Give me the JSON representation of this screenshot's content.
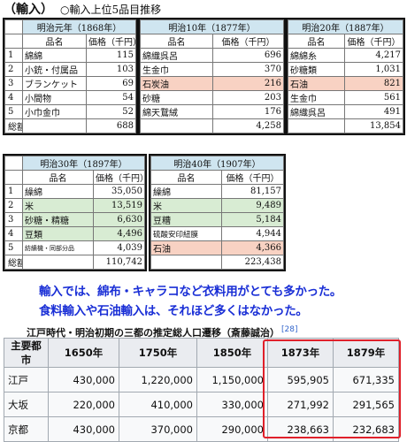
{
  "header": {
    "title": "（輸入）",
    "subtitle": "○輸入上位5品目推移"
  },
  "shared": {
    "name_col": "品名",
    "value_col": "価格（千円）",
    "total_label": "総額",
    "ranks": [
      "1",
      "2",
      "3",
      "4",
      "5"
    ]
  },
  "tables": [
    {
      "era": "明治元年（1868年）",
      "rows": [
        {
          "name": "綿綿",
          "value": "115"
        },
        {
          "name": "小銃・付属品",
          "value": "103"
        },
        {
          "name": "ブランケット",
          "value": "69"
        },
        {
          "name": "小間物",
          "value": "54"
        },
        {
          "name": "小巾金巾",
          "value": "52"
        }
      ],
      "total": "688"
    },
    {
      "era": "明治10年（1877年）",
      "rows": [
        {
          "name": "綿織呉呂",
          "value": "696"
        },
        {
          "name": "生金巾",
          "value": "370"
        },
        {
          "name": "石炭油",
          "value": "216"
        },
        {
          "name": "砂糖",
          "value": "203"
        },
        {
          "name": "綿天鵞絨",
          "value": "176"
        }
      ],
      "total": "4,258"
    },
    {
      "era": "明治20年（1887年）",
      "rows": [
        {
          "name": "綿綿糸",
          "value": "4,217"
        },
        {
          "name": "砂糖類",
          "value": "1,031"
        },
        {
          "name": "石油",
          "value": "821"
        },
        {
          "name": "生金巾",
          "value": "561"
        },
        {
          "name": "綿織呉呂",
          "value": "491"
        }
      ],
      "total": "13,854"
    },
    {
      "era": "明治30年（1897年）",
      "rows": [
        {
          "name": "繰綿",
          "value": "35,050"
        },
        {
          "name": "米",
          "value": "13,519"
        },
        {
          "name": "砂糖・精糖",
          "value": "6,630"
        },
        {
          "name": "豆類",
          "value": "4,496"
        },
        {
          "name": "紡績機・同部分品",
          "value": "4,039"
        }
      ],
      "total": "110,742"
    },
    {
      "era": "明治40年（1907年）",
      "rows": [
        {
          "name": "繰綿",
          "value": "81,157"
        },
        {
          "name": "米",
          "value": "9,489"
        },
        {
          "name": "豆糟",
          "value": "5,184"
        },
        {
          "name": "硫酸安印紐膜",
          "value": "4,944"
        },
        {
          "name": "石油",
          "value": "4,366"
        }
      ],
      "total": "223,438"
    }
  ],
  "commentary": {
    "line1": "輸入では、綿布・キャラコなど衣料用がとても多かった。",
    "line2": "食料輸入や石油輸入は、それほど多くはなかった。"
  },
  "population": {
    "title": "江戸時代・明治初期の三都の推定総人口遷移（斎藤誠治）",
    "ref": "[28]",
    "headers": [
      "主要都市",
      "1650年",
      "1750年",
      "1850年",
      "1873年",
      "1879年"
    ],
    "rows": [
      {
        "city": "江戸",
        "values": [
          "430,000",
          "1,220,000",
          "1,150,000",
          "595,905",
          "671,335"
        ]
      },
      {
        "city": "大坂",
        "values": [
          "220,000",
          "410,000",
          "330,000",
          "271,992",
          "291,565"
        ]
      },
      {
        "city": "京都",
        "values": [
          "430,000",
          "370,000",
          "290,000",
          "238,663",
          "232,683"
        ]
      }
    ],
    "highlight_color": "#e0202a"
  },
  "colors": {
    "era_header": "#cfe5f0",
    "pink": "#f8d2c3",
    "green": "#d8ecd3",
    "blue_text": "#1a2fd6"
  }
}
